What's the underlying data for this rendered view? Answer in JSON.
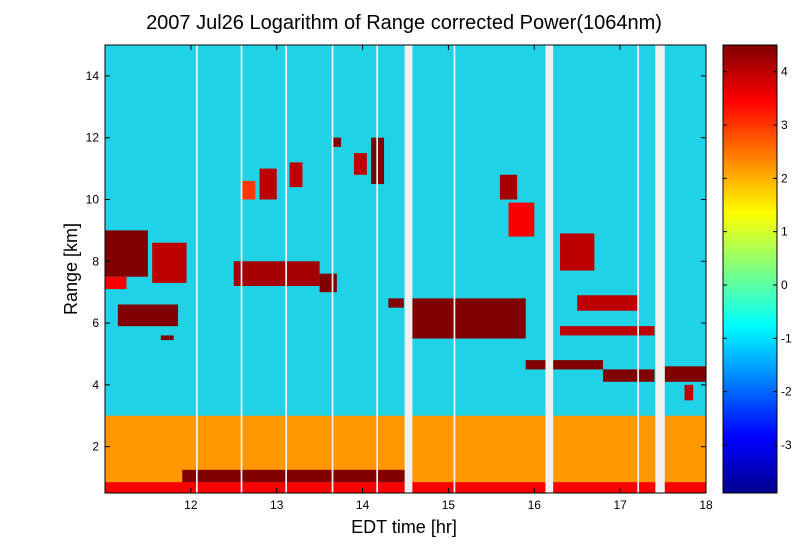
{
  "chart_data": {
    "type": "heatmap",
    "title": "2007 Jul26  Logarithm of Range corrected Power(1064nm)",
    "xlabel": "EDT time [hr]",
    "ylabel": "Range [km]",
    "xlim": [
      11.0,
      18.0
    ],
    "ylim": [
      0.5,
      15.0
    ],
    "x_ticks": [
      12,
      13,
      14,
      15,
      16,
      17,
      18
    ],
    "y_ticks": [
      2,
      4,
      6,
      8,
      10,
      12,
      14
    ],
    "colorbar": {
      "colormap": "jet",
      "range": [
        -3.9,
        4.5
      ],
      "ticks": [
        -3,
        -2,
        -1,
        0,
        1,
        2,
        3,
        4
      ]
    },
    "data_gaps_hr": [
      {
        "x0": 12.06,
        "x1": 12.08
      },
      {
        "x0": 12.58,
        "x1": 12.6
      },
      {
        "x0": 13.1,
        "x1": 13.12
      },
      {
        "x0": 13.64,
        "x1": 13.66
      },
      {
        "x0": 14.16,
        "x1": 14.18
      },
      {
        "x0": 14.49,
        "x1": 14.58
      },
      {
        "x0": 15.06,
        "x1": 15.08
      },
      {
        "x0": 16.13,
        "x1": 16.22
      },
      {
        "x0": 17.2,
        "x1": 17.22
      },
      {
        "x0": 17.41,
        "x1": 17.52
      }
    ],
    "layers": [
      {
        "kind": "boundary-layer",
        "x0": 11.0,
        "x1": 18.0,
        "y0": 0.5,
        "y1": 3.0,
        "value": 2.2
      },
      {
        "kind": "ground-return",
        "x0": 11.0,
        "x1": 18.0,
        "y0": 0.5,
        "y1": 0.85,
        "value": 3.5
      },
      {
        "kind": "aerosol-top",
        "x0": 11.9,
        "x1": 14.5,
        "y0": 0.85,
        "y1": 1.25,
        "value": 4.5
      },
      {
        "kind": "cloud",
        "x0": 11.0,
        "x1": 11.5,
        "y0": 7.5,
        "y1": 9.0,
        "value": 4.5
      },
      {
        "kind": "cloud",
        "x0": 11.55,
        "x1": 11.95,
        "y0": 7.3,
        "y1": 8.6,
        "value": 4.0
      },
      {
        "kind": "cloud",
        "x0": 11.0,
        "x1": 11.25,
        "y0": 7.1,
        "y1": 7.5,
        "value": 3.5
      },
      {
        "kind": "cloud",
        "x0": 11.15,
        "x1": 11.85,
        "y0": 5.9,
        "y1": 6.6,
        "value": 4.5
      },
      {
        "kind": "cloud",
        "x0": 11.65,
        "x1": 11.8,
        "y0": 5.45,
        "y1": 5.6,
        "value": 4.5
      },
      {
        "kind": "cloud",
        "x0": 12.5,
        "x1": 13.5,
        "y0": 7.2,
        "y1": 8.0,
        "value": 4.2
      },
      {
        "kind": "cloud",
        "x0": 13.5,
        "x1": 13.7,
        "y0": 7.0,
        "y1": 7.6,
        "value": 4.5
      },
      {
        "kind": "cloud",
        "x0": 12.8,
        "x1": 13.0,
        "y0": 10.0,
        "y1": 11.0,
        "value": 4.0
      },
      {
        "kind": "cloud",
        "x0": 13.15,
        "x1": 13.3,
        "y0": 10.4,
        "y1": 11.2,
        "value": 4.0
      },
      {
        "kind": "cloud",
        "x0": 12.6,
        "x1": 12.75,
        "y0": 10.0,
        "y1": 10.6,
        "value": 3.0
      },
      {
        "kind": "cloud",
        "x0": 14.1,
        "x1": 14.25,
        "y0": 10.5,
        "y1": 12.0,
        "value": 4.5
      },
      {
        "kind": "cloud",
        "x0": 13.9,
        "x1": 14.05,
        "y0": 10.8,
        "y1": 11.5,
        "value": 4.0
      },
      {
        "kind": "cloud",
        "x0": 13.65,
        "x1": 13.75,
        "y0": 11.7,
        "y1": 12.0,
        "value": 4.5
      },
      {
        "kind": "cloud",
        "x0": 14.3,
        "x1": 14.48,
        "y0": 6.5,
        "y1": 6.8,
        "value": 4.5
      },
      {
        "kind": "cloud",
        "x0": 14.58,
        "x1": 15.9,
        "y0": 5.5,
        "y1": 6.8,
        "value": 4.5
      },
      {
        "kind": "cloud",
        "x0": 15.6,
        "x1": 15.8,
        "y0": 10.0,
        "y1": 10.8,
        "value": 4.2
      },
      {
        "kind": "cloud",
        "x0": 15.7,
        "x1": 16.0,
        "y0": 8.8,
        "y1": 9.9,
        "value": 3.5
      },
      {
        "kind": "cloud",
        "x0": 16.3,
        "x1": 16.7,
        "y0": 7.7,
        "y1": 8.9,
        "value": 4.0
      },
      {
        "kind": "cloud",
        "x0": 16.5,
        "x1": 17.2,
        "y0": 6.4,
        "y1": 6.9,
        "value": 4.0
      },
      {
        "kind": "cloud",
        "x0": 16.3,
        "x1": 17.4,
        "y0": 5.6,
        "y1": 5.9,
        "value": 4.0
      },
      {
        "kind": "cloud",
        "x0": 15.9,
        "x1": 16.8,
        "y0": 4.5,
        "y1": 4.8,
        "value": 4.5
      },
      {
        "kind": "cloud",
        "x0": 16.8,
        "x1": 17.4,
        "y0": 4.1,
        "y1": 4.5,
        "value": 4.5
      },
      {
        "kind": "cloud",
        "x0": 17.52,
        "x1": 18.0,
        "y0": 4.1,
        "y1": 4.6,
        "value": 4.5
      },
      {
        "kind": "cloud",
        "x0": 17.75,
        "x1": 17.85,
        "y0": 3.5,
        "y1": 4.0,
        "value": 4.0
      }
    ]
  }
}
